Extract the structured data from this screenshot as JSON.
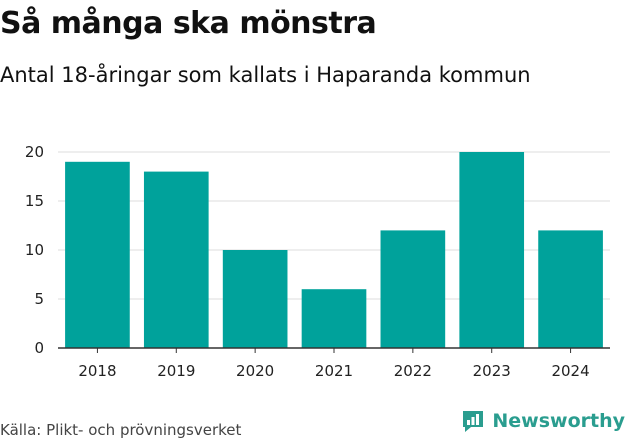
{
  "header": {
    "title": "Så många ska mönstra",
    "subtitle": "Antal 18-åringar som kallats i Haparanda kommun"
  },
  "footer": {
    "source": "Källa: Plikt- och prövningsverket",
    "brand": "Newsworthy"
  },
  "colors": {
    "bar": "#00a29b",
    "grid": "#dddddd",
    "axis": "#333333",
    "brand": "#2a9d8f"
  },
  "chart_data": {
    "type": "bar",
    "title": "Så många ska mönstra",
    "subtitle": "Antal 18-åringar som kallats i Haparanda kommun",
    "xlabel": "",
    "ylabel": "",
    "categories": [
      "2018",
      "2019",
      "2020",
      "2021",
      "2022",
      "2023",
      "2024"
    ],
    "values": [
      19,
      18,
      10,
      6,
      12,
      20,
      12
    ],
    "ylim": [
      0,
      20
    ],
    "yticks": [
      0,
      5,
      10,
      15,
      20
    ],
    "grid": true,
    "legend": "none"
  }
}
